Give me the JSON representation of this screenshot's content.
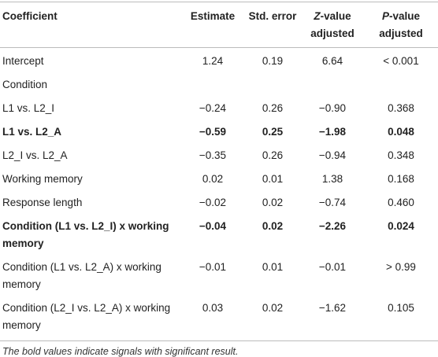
{
  "table": {
    "header": [
      {
        "text": "Coefficient"
      },
      {
        "text": "Estimate"
      },
      {
        "text": "Std. error"
      },
      {
        "italic": "Z",
        "text": "-value adjusted"
      },
      {
        "italic": "P",
        "text": "-value adjusted"
      }
    ],
    "rows": [
      {
        "bold": false,
        "cells": [
          "Intercept",
          "1.24",
          "0.19",
          "6.64",
          "< 0.001"
        ]
      },
      {
        "bold": false,
        "cells": [
          "Condition"
        ]
      },
      {
        "bold": false,
        "cells": [
          "L1 vs. L2_I",
          "−0.24",
          "0.26",
          "−0.90",
          "0.368"
        ]
      },
      {
        "bold": true,
        "cells": [
          "L1 vs. L2_A",
          "−0.59",
          "0.25",
          "−1.98",
          "0.048"
        ]
      },
      {
        "bold": false,
        "cells": [
          "L2_I vs. L2_A",
          "−0.35",
          "0.26",
          "−0.94",
          "0.348"
        ]
      },
      {
        "bold": false,
        "cells": [
          "Working memory",
          "0.02",
          "0.01",
          "1.38",
          "0.168"
        ]
      },
      {
        "bold": false,
        "cells": [
          "Response length",
          "−0.02",
          "0.02",
          "−0.74",
          "0.460"
        ]
      },
      {
        "bold": true,
        "cells": [
          "Condition (L1 vs. L2_I) x working memory",
          "−0.04",
          "0.02",
          "−2.26",
          "0.024"
        ]
      },
      {
        "bold": false,
        "cells": [
          "Condition (L1 vs. L2_A) x working memory",
          "−0.01",
          "0.01",
          "−0.01",
          "> 0.99"
        ]
      },
      {
        "bold": false,
        "cells": [
          "Condition (L2_I vs. L2_A) x working memory",
          "0.03",
          "0.02",
          "−1.62",
          "0.105"
        ]
      }
    ],
    "footnote": "The bold values indicate signals with significant result."
  }
}
